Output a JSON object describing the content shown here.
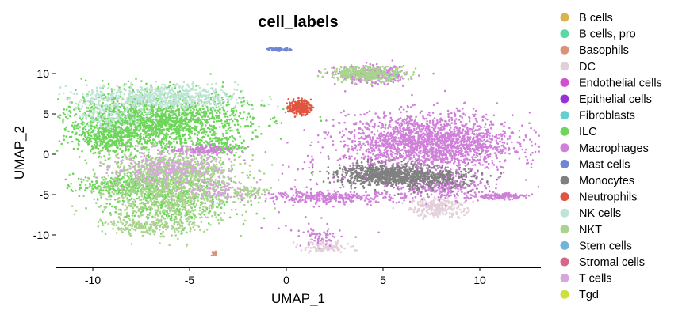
{
  "chart_data": {
    "type": "scatter",
    "title": "cell_labels",
    "xlabel": "UMAP_1",
    "ylabel": "UMAP_2",
    "xlim": [
      -12,
      14
    ],
    "ylim": [
      -13.5,
      14.8
    ],
    "x_ticks": [
      {
        "value": -10,
        "label": "-10"
      },
      {
        "value": -5,
        "label": "-5"
      },
      {
        "value": 0,
        "label": "0"
      },
      {
        "value": 5,
        "label": "5"
      },
      {
        "value": 10,
        "label": "10"
      }
    ],
    "y_ticks": [
      {
        "value": -10,
        "label": "-10"
      },
      {
        "value": -5,
        "label": "-5"
      },
      {
        "value": 0,
        "label": "0"
      },
      {
        "value": 5,
        "label": "5"
      },
      {
        "value": 10,
        "label": "10"
      }
    ],
    "grid": false,
    "legend_position": "right",
    "series": [
      {
        "name": "B cells",
        "color": "#d9b44a",
        "clusters": []
      },
      {
        "name": "B cells, pro",
        "color": "#5ad8a6",
        "clusters": []
      },
      {
        "name": "Basophils",
        "color": "#d9937a",
        "clusters": [
          {
            "cx": -3.7,
            "cy": -12.3,
            "sx": 0.12,
            "sy": 0.15,
            "n": 12
          }
        ]
      },
      {
        "name": "DC",
        "color": "#e3cfd9",
        "clusters": [
          {
            "cx": 7.8,
            "cy": -6.6,
            "sx": 0.7,
            "sy": 0.6,
            "n": 260
          },
          {
            "cx": 2.0,
            "cy": -11.5,
            "sx": 0.6,
            "sy": 0.35,
            "n": 110
          }
        ]
      },
      {
        "name": "Endothelial cells",
        "color": "#d14fd0",
        "clusters": []
      },
      {
        "name": "Epithelial cells",
        "color": "#9932d6",
        "clusters": []
      },
      {
        "name": "Fibroblasts",
        "color": "#64cfcf",
        "clusters": [
          {
            "cx": 5.5,
            "cy": 9.8,
            "sx": 0.08,
            "sy": 0.1,
            "n": 8
          }
        ]
      },
      {
        "name": "ILC",
        "color": "#6dd65a",
        "clusters": [
          {
            "cx": -6.8,
            "cy": 4.0,
            "sx": 2.4,
            "sy": 1.8,
            "n": 1900
          },
          {
            "cx": -9.2,
            "cy": 2.0,
            "sx": 0.9,
            "sy": 1.0,
            "n": 300
          },
          {
            "cx": -8.5,
            "cy": -3.8,
            "sx": 1.2,
            "sy": 0.6,
            "n": 260
          },
          {
            "cx": -6.0,
            "cy": -5.5,
            "sx": 1.6,
            "sy": 1.8,
            "n": 450
          },
          {
            "cx": -3.5,
            "cy": 1.0,
            "sx": 0.6,
            "sy": 0.6,
            "n": 120
          }
        ]
      },
      {
        "name": "Macrophages",
        "color": "#cf80d9",
        "clusters": [
          {
            "cx": 7.4,
            "cy": 1.4,
            "sx": 2.2,
            "sy": 1.8,
            "n": 2000
          },
          {
            "cx": 8.0,
            "cy": -4.0,
            "sx": 1.2,
            "sy": 0.8,
            "n": 300
          },
          {
            "cx": 11.0,
            "cy": -5.2,
            "sx": 0.7,
            "sy": 0.18,
            "n": 150
          },
          {
            "cx": 2.3,
            "cy": -5.3,
            "sx": 1.8,
            "sy": 0.35,
            "n": 320
          },
          {
            "cx": -4.2,
            "cy": 0.5,
            "sx": 0.9,
            "sy": 0.25,
            "n": 140
          },
          {
            "cx": 4.4,
            "cy": 9.8,
            "sx": 0.9,
            "sy": 0.55,
            "n": 260
          },
          {
            "cx": 1.8,
            "cy": -10.3,
            "sx": 0.5,
            "sy": 0.6,
            "n": 60
          },
          {
            "cx": 1.2,
            "cy": -4.5,
            "sx": 1.5,
            "sy": 2.5,
            "n": 60
          }
        ]
      },
      {
        "name": "Mast cells",
        "color": "#6f86d6",
        "clusters": [
          {
            "cx": -0.4,
            "cy": 13.0,
            "sx": 0.3,
            "sy": 0.1,
            "n": 60
          }
        ]
      },
      {
        "name": "Monocytes",
        "color": "#808080",
        "clusters": [
          {
            "cx": 5.0,
            "cy": -2.5,
            "sx": 1.2,
            "sy": 0.7,
            "n": 700
          },
          {
            "cx": 7.5,
            "cy": -3.0,
            "sx": 1.3,
            "sy": 0.7,
            "n": 350
          }
        ]
      },
      {
        "name": "Neutrophils",
        "color": "#e05540",
        "clusters": [
          {
            "cx": 0.7,
            "cy": 5.8,
            "sx": 0.28,
            "sy": 0.45,
            "n": 220
          }
        ]
      },
      {
        "name": "NK cells",
        "color": "#bde4d5",
        "clusters": [
          {
            "cx": -6.5,
            "cy": 7.0,
            "sx": 2.0,
            "sy": 0.8,
            "n": 700
          },
          {
            "cx": -9.2,
            "cy": 4.6,
            "sx": 0.9,
            "sy": 0.8,
            "n": 150
          }
        ]
      },
      {
        "name": "NKT",
        "color": "#a9d48e",
        "clusters": [
          {
            "cx": -6.2,
            "cy": -4.5,
            "sx": 1.7,
            "sy": 2.2,
            "n": 1100
          },
          {
            "cx": -5.5,
            "cy": -1.8,
            "sx": 1.6,
            "sy": 0.8,
            "n": 400
          },
          {
            "cx": -7.0,
            "cy": -9.0,
            "sx": 1.2,
            "sy": 0.5,
            "n": 200
          },
          {
            "cx": 4.2,
            "cy": 10.0,
            "sx": 1.0,
            "sy": 0.45,
            "n": 380
          },
          {
            "cx": -2.0,
            "cy": -4.7,
            "sx": 0.5,
            "sy": 0.4,
            "n": 80
          }
        ]
      },
      {
        "name": "Stem cells",
        "color": "#72b3d9",
        "clusters": []
      },
      {
        "name": "Stromal cells",
        "color": "#d6688a",
        "clusters": []
      },
      {
        "name": "T cells",
        "color": "#d4a8d9",
        "clusters": [
          {
            "cx": -6.0,
            "cy": -1.8,
            "sx": 1.5,
            "sy": 1.0,
            "n": 360
          },
          {
            "cx": -3.5,
            "cy": -4.5,
            "sx": 0.8,
            "sy": 0.6,
            "n": 100
          }
        ]
      },
      {
        "name": "Tgd",
        "color": "#cfdf3e",
        "clusters": []
      }
    ]
  }
}
